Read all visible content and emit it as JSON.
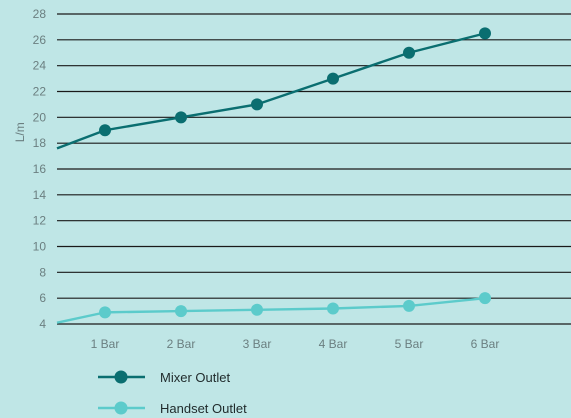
{
  "chart_data": {
    "type": "line",
    "categories": [
      "1 Bar",
      "2 Bar",
      "3 Bar",
      "4 Bar",
      "5 Bar",
      "6 Bar"
    ],
    "ylabel": "L/m",
    "xlabel": "",
    "ylim": [
      4,
      28
    ],
    "yticks": [
      4,
      6,
      8,
      10,
      12,
      14,
      16,
      18,
      20,
      22,
      24,
      26,
      28
    ],
    "grid": true,
    "legend_position": "bottom-left",
    "series": [
      {
        "name": "Mixer Outlet",
        "color": "#0a6e70",
        "values": [
          19,
          20,
          21,
          23,
          25,
          26.5
        ],
        "line_start": 17.6
      },
      {
        "name": "Handset Outlet",
        "color": "#5ccbcb",
        "values": [
          4.9,
          5.0,
          5.1,
          5.2,
          5.4,
          6.0
        ],
        "line_start": 4.1
      }
    ]
  },
  "colors": {
    "background": "#bfe6e6",
    "gridline": "#1a1a1a",
    "tick_text": "#6b7f80"
  }
}
